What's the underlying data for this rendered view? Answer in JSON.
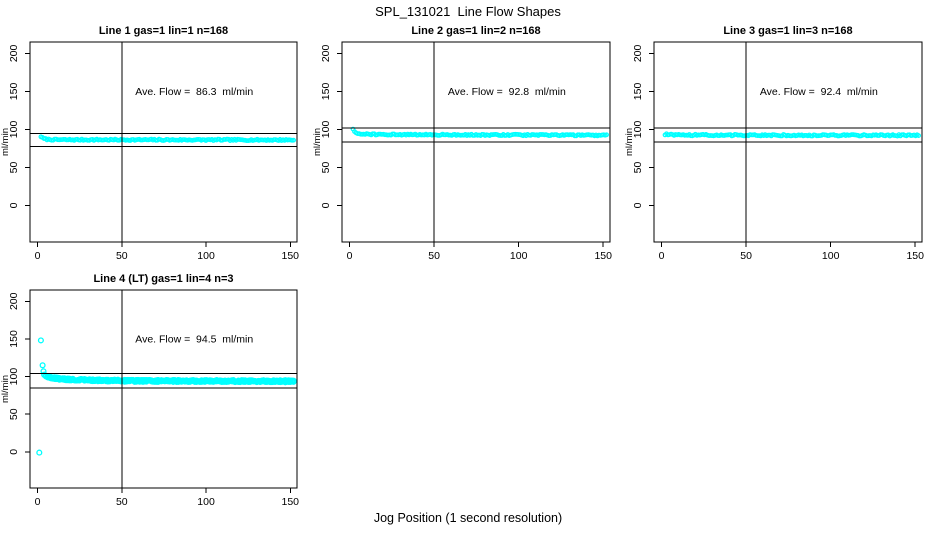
{
  "chart_data": {
    "type": "scatter",
    "title": "SPL_131021  Line Flow Shapes",
    "xlabel": "Jog Position (1 second resolution)",
    "marker_color": "#00FFFF",
    "reference_line_color": "#000000",
    "grid": false,
    "panels": [
      {
        "name": "line-1",
        "title": "Line 1 gas=1 lin=1 n=168",
        "ylabel": "ml/min",
        "annotation": "Ave. Flow =  86.3  ml/min",
        "ave_flow_ml_min": 86.3,
        "x_ticks": [
          0,
          50,
          100,
          150
        ],
        "y_ticks": [
          0,
          50,
          100,
          150,
          200
        ],
        "xlim": [
          -4.5,
          154
        ],
        "ylim": [
          -48,
          215
        ],
        "ref_vline_x": 50,
        "ref_hlines_y": [
          94.9,
          77.7
        ],
        "series": [
          {
            "name": "flow",
            "runs": 1,
            "points_per_run": 168,
            "noise": 0.9,
            "keypoints": [
              [
                2,
                90.8
              ],
              [
                3,
                88.6
              ],
              [
                4,
                87.6
              ],
              [
                6,
                86.9
              ],
              [
                10,
                86.5
              ],
              [
                20,
                86.4
              ],
              [
                80,
                86.3
              ],
              [
                152,
                86.2
              ]
            ]
          }
        ],
        "outlier_points": []
      },
      {
        "name": "line-2",
        "title": "Line 2 gas=1 lin=2 n=168",
        "ylabel": "ml/min",
        "annotation": "Ave. Flow =  92.8  ml/min",
        "ave_flow_ml_min": 92.8,
        "x_ticks": [
          0,
          50,
          100,
          150
        ],
        "y_ticks": [
          0,
          50,
          100,
          150,
          200
        ],
        "xlim": [
          -4.5,
          154
        ],
        "ylim": [
          -48,
          215
        ],
        "ref_vline_x": 50,
        "ref_hlines_y": [
          102.1,
          83.5
        ],
        "series": [
          {
            "name": "flow",
            "runs": 1,
            "points_per_run": 168,
            "noise": 0.9,
            "keypoints": [
              [
                2,
                100.2
              ],
              [
                3,
                97.0
              ],
              [
                4,
                95.3
              ],
              [
                6,
                94.2
              ],
              [
                10,
                93.6
              ],
              [
                20,
                93.3
              ],
              [
                80,
                92.8
              ],
              [
                152,
                92.3
              ]
            ]
          }
        ],
        "outlier_points": []
      },
      {
        "name": "line-3",
        "title": "Line 3 gas=1 lin=3 n=168",
        "ylabel": "ml/min",
        "annotation": "Ave. Flow =  92.4  ml/min",
        "ave_flow_ml_min": 92.4,
        "x_ticks": [
          0,
          50,
          100,
          150
        ],
        "y_ticks": [
          0,
          50,
          100,
          150,
          200
        ],
        "xlim": [
          -4.5,
          154
        ],
        "ylim": [
          -48,
          215
        ],
        "ref_vline_x": 50,
        "ref_hlines_y": [
          101.6,
          83.2
        ],
        "series": [
          {
            "name": "flow",
            "runs": 1,
            "points_per_run": 168,
            "noise": 1.0,
            "keypoints": [
              [
                2,
                93.8
              ],
              [
                4,
                93.0
              ],
              [
                8,
                92.7
              ],
              [
                40,
                92.5
              ],
              [
                100,
                92.3
              ],
              [
                152,
                92.2
              ]
            ]
          }
        ],
        "outlier_points": []
      },
      {
        "name": "line-4-lt",
        "title": "Line 4 (LT) gas=1 lin=4 n=3",
        "ylabel": "ml/min",
        "annotation": "Ave. Flow =  94.5  ml/min",
        "ave_flow_ml_min": 94.5,
        "x_ticks": [
          0,
          50,
          100,
          150
        ],
        "y_ticks": [
          0,
          50,
          100,
          150,
          200
        ],
        "xlim": [
          -4.5,
          154
        ],
        "ylim": [
          -48,
          215
        ],
        "ref_vline_x": 50,
        "ref_hlines_y": [
          104.0,
          85.1
        ],
        "series": [
          {
            "name": "jogs",
            "runs": 3,
            "points_per_run": 150,
            "noise": 1.3,
            "keypoints": [
              [
                4,
                102.5
              ],
              [
                6,
                100.0
              ],
              [
                9,
                98.2
              ],
              [
                14,
                96.8
              ],
              [
                22,
                95.8
              ],
              [
                35,
                95.0
              ],
              [
                55,
                94.4
              ],
              [
                90,
                94.1
              ],
              [
                152,
                93.8
              ]
            ]
          }
        ],
        "outlier_points": [
          [
            1,
            -1
          ],
          [
            2,
            148
          ],
          [
            3,
            115
          ],
          [
            3.5,
            107
          ]
        ]
      }
    ]
  }
}
